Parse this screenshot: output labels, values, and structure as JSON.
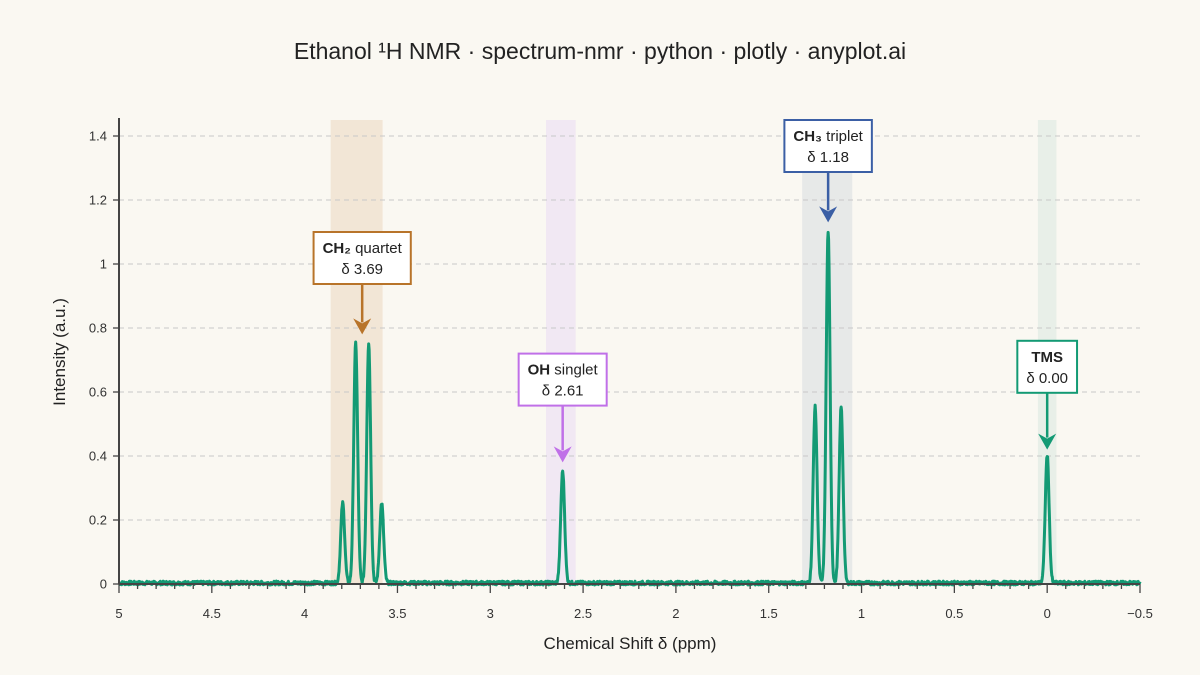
{
  "chart_data": {
    "type": "line",
    "title": "Ethanol ¹H NMR · spectrum-nmr · python · plotly · anyplot.ai",
    "xlabel": "Chemical Shift δ (ppm)",
    "ylabel": "Intensity (a.u.)",
    "xlim": [
      5,
      -0.5
    ],
    "ylim": [
      0,
      1.45
    ],
    "x_reversed": true,
    "grid": "horizontal dashed",
    "line_color": "#139a74",
    "x_ticks": [
      {
        "value": 5,
        "label": "5"
      },
      {
        "value": 4.5,
        "label": "4.5"
      },
      {
        "value": 4,
        "label": "4"
      },
      {
        "value": 3.5,
        "label": "3.5"
      },
      {
        "value": 3,
        "label": "3"
      },
      {
        "value": 2.5,
        "label": "2.5"
      },
      {
        "value": 2,
        "label": "2"
      },
      {
        "value": 1.5,
        "label": "1.5"
      },
      {
        "value": 1,
        "label": "1"
      },
      {
        "value": 0.5,
        "label": "0.5"
      },
      {
        "value": 0,
        "label": "0"
      },
      {
        "value": -0.5,
        "label": "−0.5"
      }
    ],
    "y_ticks": [
      {
        "value": 0,
        "label": "0"
      },
      {
        "value": 0.2,
        "label": "0.2"
      },
      {
        "value": 0.4,
        "label": "0.4"
      },
      {
        "value": 0.6,
        "label": "0.6"
      },
      {
        "value": 0.8,
        "label": "0.8"
      },
      {
        "value": 1.0,
        "label": "1"
      },
      {
        "value": 1.2,
        "label": "1.2"
      },
      {
        "value": 1.4,
        "label": "1.4"
      }
    ],
    "peak_groups": [
      {
        "group": "CH₂",
        "multiplicity": "quartet",
        "shift": "δ 3.69",
        "center": 3.69,
        "color": "#b8742a",
        "band": [
          3.58,
          3.86
        ],
        "band_color": "#f2e6d6",
        "lines": [
          {
            "x": 3.795,
            "y": 0.25
          },
          {
            "x": 3.725,
            "y": 0.75
          },
          {
            "x": 3.655,
            "y": 0.75
          },
          {
            "x": 3.585,
            "y": 0.25
          }
        ],
        "label_bold": "CH₂",
        "label_rest": " quartet",
        "box_top_y": 1.1,
        "arrow_tip_y": 0.78
      },
      {
        "group": "OH",
        "multiplicity": "singlet",
        "shift": "δ 2.61",
        "center": 2.61,
        "color": "#c070e8",
        "band": [
          2.54,
          2.7
        ],
        "band_color": "#f1e8f3",
        "lines": [
          {
            "x": 2.61,
            "y": 0.35
          }
        ],
        "label_bold": "OH",
        "label_rest": " singlet",
        "box_top_y": 0.72,
        "arrow_tip_y": 0.38
      },
      {
        "group": "CH₃",
        "multiplicity": "triplet",
        "shift": "δ 1.18",
        "center": 1.18,
        "color": "#3b5fa5",
        "band": [
          1.05,
          1.32
        ],
        "band_color": "#e7e9e8",
        "lines": [
          {
            "x": 1.25,
            "y": 0.55
          },
          {
            "x": 1.18,
            "y": 1.1
          },
          {
            "x": 1.11,
            "y": 0.55
          }
        ],
        "label_bold": "CH₃",
        "label_rest": " triplet",
        "box_top_y": 1.45,
        "arrow_tip_y": 1.13
      },
      {
        "group": "TMS",
        "multiplicity": "",
        "shift": "δ 0.00",
        "center": 0.0,
        "color": "#139a74",
        "band": [
          -0.05,
          0.05
        ],
        "band_color": "#e8efe8",
        "lines": [
          {
            "x": 0.0,
            "y": 0.4
          }
        ],
        "label_bold": "TMS",
        "label_rest": "",
        "box_top_y": 0.76,
        "arrow_tip_y": 0.42
      }
    ]
  }
}
